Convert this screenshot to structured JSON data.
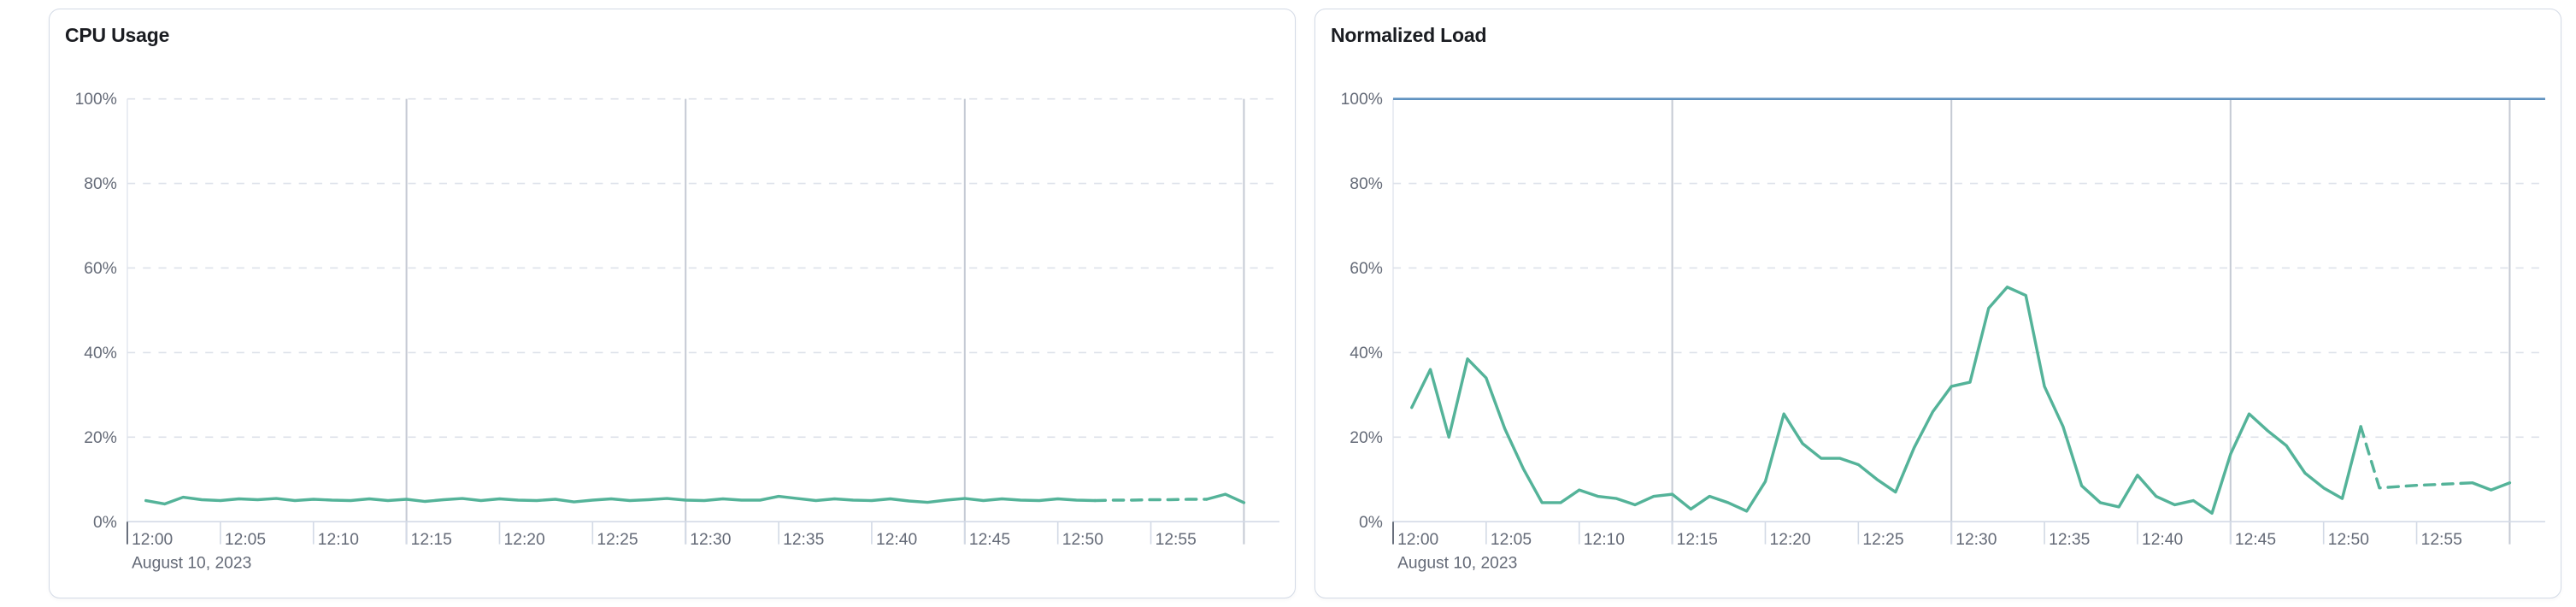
{
  "date_annotation": "August 10, 2023",
  "chart_data": [
    {
      "id": "cpu-usage",
      "type": "line",
      "title": "CPU Usage",
      "ylim": [
        0,
        100
      ],
      "y_tick_labels": [
        "0%",
        "20%",
        "40%",
        "60%",
        "80%",
        "100%"
      ],
      "x_axis_annotation": "August 10, 2023",
      "x_domain_minutes": [
        0,
        60
      ],
      "x_tick_labels": [
        {
          "minute": 0,
          "label": "12:00"
        },
        {
          "minute": 5,
          "label": "12:05"
        },
        {
          "minute": 10,
          "label": "12:10"
        },
        {
          "minute": 15,
          "label": "12:15"
        },
        {
          "minute": 20,
          "label": "12:20"
        },
        {
          "minute": 25,
          "label": "12:25"
        },
        {
          "minute": 30,
          "label": "12:30"
        },
        {
          "minute": 35,
          "label": "12:35"
        },
        {
          "minute": 40,
          "label": "12:40"
        },
        {
          "minute": 45,
          "label": "12:45"
        },
        {
          "minute": 50,
          "label": "12:50"
        },
        {
          "minute": 55,
          "label": "12:55"
        }
      ],
      "vertical_gridlines_minutes": [
        15,
        30,
        45,
        60
      ],
      "grid": true,
      "legend": "none",
      "limit_line": null,
      "series": [
        {
          "name": "CPU Usage",
          "color": "#54b399",
          "x_start_minute": 1,
          "x_step_minutes": 1,
          "dashed_segment_minutes": [
            52,
            58
          ],
          "values": [
            5,
            4.2,
            5.8,
            5.2,
            5,
            5.4,
            5.2,
            5.5,
            5,
            5.3,
            5.1,
            5,
            5.4,
            5,
            5.3,
            4.8,
            5.2,
            5.5,
            5,
            5.4,
            5.1,
            5,
            5.3,
            4.7,
            5.1,
            5.4,
            5,
            5.2,
            5.5,
            5.1,
            5,
            5.4,
            5.1,
            5.1,
            6,
            5.5,
            5,
            5.4,
            5.1,
            5,
            5.4,
            4.9,
            4.6,
            5.1,
            5.5,
            5,
            5.4,
            5.1,
            5,
            5.4,
            5.1,
            5,
            5.1,
            5.1,
            5.2,
            5.2,
            5.3,
            5.3,
            6.5,
            4.5
          ]
        }
      ]
    },
    {
      "id": "normalized-load",
      "type": "line",
      "title": "Normalized Load",
      "ylim": [
        0,
        100
      ],
      "y_tick_labels": [
        "0%",
        "20%",
        "40%",
        "60%",
        "80%",
        "100%"
      ],
      "x_axis_annotation": "August 10, 2023",
      "x_domain_minutes": [
        0,
        60
      ],
      "x_tick_labels": [
        {
          "minute": 0,
          "label": "12:00"
        },
        {
          "minute": 5,
          "label": "12:05"
        },
        {
          "minute": 10,
          "label": "12:10"
        },
        {
          "minute": 15,
          "label": "12:15"
        },
        {
          "minute": 20,
          "label": "12:20"
        },
        {
          "minute": 25,
          "label": "12:25"
        },
        {
          "minute": 30,
          "label": "12:30"
        },
        {
          "minute": 35,
          "label": "12:35"
        },
        {
          "minute": 40,
          "label": "12:40"
        },
        {
          "minute": 45,
          "label": "12:45"
        },
        {
          "minute": 50,
          "label": "12:50"
        },
        {
          "minute": 55,
          "label": "12:55"
        }
      ],
      "vertical_gridlines_minutes": [
        15,
        30,
        45,
        60
      ],
      "grid": true,
      "legend": "none",
      "limit_line": {
        "value": 100,
        "color": "#6092c0"
      },
      "series": [
        {
          "name": "Normalized Load",
          "color": "#54b399",
          "x_start_minute": 1,
          "x_step_minutes": 1,
          "dashed_segment_minutes": [
            52,
            58
          ],
          "values": [
            27,
            36,
            20,
            38.5,
            34,
            22,
            12.5,
            4.5,
            4.5,
            7.5,
            6,
            5.5,
            4,
            6,
            6.5,
            3,
            6,
            4.5,
            2.5,
            9.5,
            25.5,
            18.5,
            15,
            15,
            13.5,
            10,
            7,
            17.5,
            26,
            32,
            33,
            50.5,
            55.5,
            53.5,
            32,
            22.5,
            8.5,
            4.5,
            3.5,
            11,
            6,
            4,
            5,
            2,
            16,
            25.5,
            21.5,
            18,
            11.5,
            8,
            5.5,
            22.5,
            8,
            8.3,
            8.6,
            8.8,
            9,
            9.2,
            7.5,
            9.2
          ]
        }
      ]
    }
  ]
}
